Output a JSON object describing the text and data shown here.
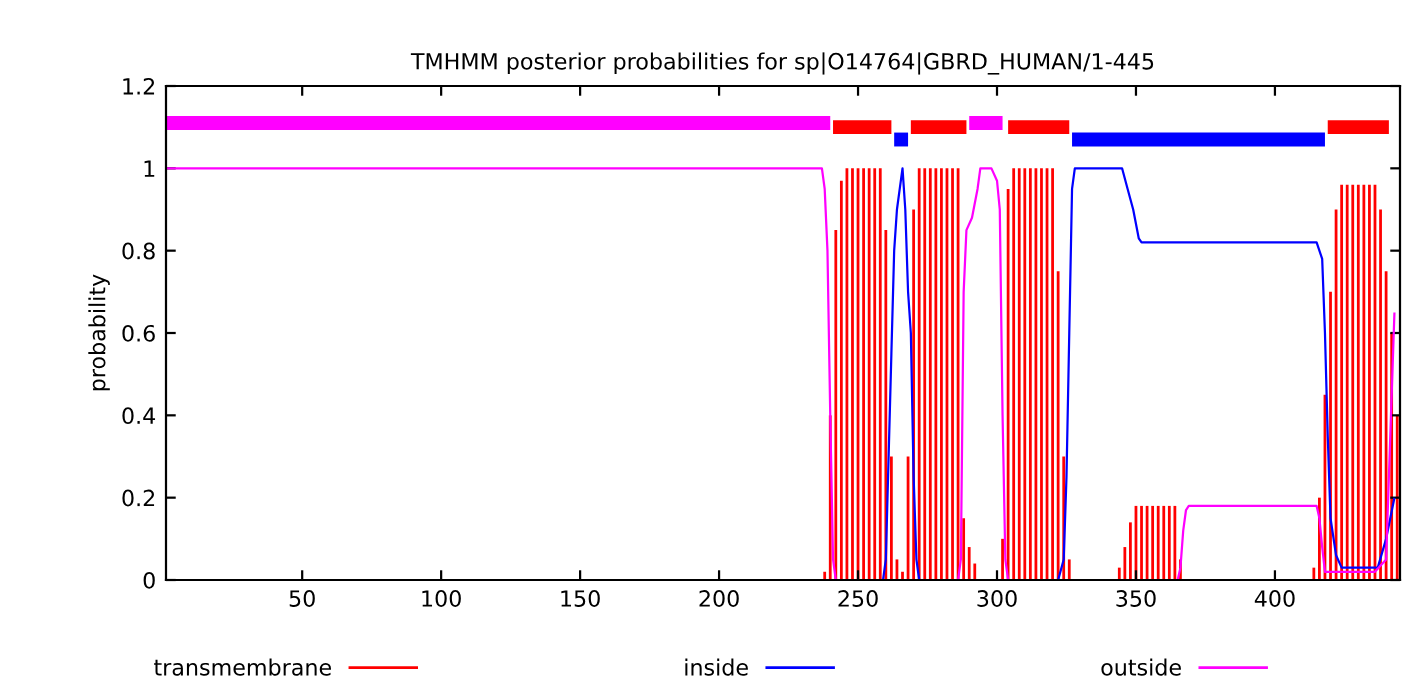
{
  "chart_data": {
    "type": "line",
    "title": "TMHMM posterior probabilities for sp|O14764|GBRD_HUMAN/1-445",
    "ylabel": "probability",
    "xlim": [
      1,
      445
    ],
    "ylim": [
      0,
      1.2
    ],
    "xticks": [
      50,
      100,
      150,
      200,
      250,
      300,
      350,
      400
    ],
    "yticks": [
      0,
      0.2,
      0.4,
      0.6,
      0.8,
      1,
      1.2
    ],
    "grid": false,
    "legend": "bottom",
    "series": [
      {
        "name": "transmembrane",
        "type": "bar",
        "color": "#ff0000",
        "x": [
          238,
          240,
          242,
          244,
          246,
          248,
          250,
          252,
          254,
          256,
          258,
          260,
          262,
          264,
          266,
          268,
          270,
          272,
          274,
          276,
          278,
          280,
          282,
          284,
          286,
          288,
          290,
          292,
          300,
          302,
          304,
          306,
          308,
          310,
          312,
          314,
          316,
          318,
          320,
          322,
          324,
          326,
          344,
          346,
          348,
          350,
          352,
          354,
          356,
          358,
          360,
          362,
          364,
          366,
          368,
          414,
          416,
          418,
          420,
          422,
          424,
          426,
          428,
          430,
          432,
          434,
          436,
          438,
          440,
          442,
          444
        ],
        "values": [
          0.02,
          0.4,
          0.85,
          0.97,
          1,
          1,
          1,
          1,
          1,
          1,
          1,
          0.85,
          0.3,
          0.05,
          0.02,
          0.3,
          0.9,
          1,
          1,
          1,
          1,
          1,
          1,
          1,
          1,
          0.15,
          0.08,
          0.04,
          null,
          0.1,
          0.95,
          1,
          1,
          1,
          1,
          1,
          1,
          1,
          1,
          0.75,
          0.3,
          0.05,
          0.03,
          0.08,
          0.14,
          0.18,
          0.18,
          0.18,
          0.18,
          0.18,
          0.18,
          0.18,
          0.18,
          0.05,
          null,
          0.03,
          0.2,
          0.45,
          0.7,
          0.9,
          0.96,
          0.96,
          0.96,
          0.96,
          0.96,
          0.96,
          0.96,
          0.9,
          0.75,
          0.6,
          0.4
        ]
      },
      {
        "name": "inside",
        "color": "#0000ff",
        "x": [
          1,
          259,
          260,
          261,
          262,
          263,
          264,
          265,
          266,
          267,
          268,
          269,
          270,
          271,
          272,
          322,
          324,
          325,
          326,
          327,
          328,
          345,
          347,
          349,
          351,
          352,
          415,
          417,
          418,
          419,
          420,
          422,
          424,
          437,
          440,
          443
        ],
        "values": [
          0,
          0,
          0.05,
          0.3,
          0.55,
          0.8,
          0.9,
          0.95,
          1,
          0.9,
          0.7,
          0.6,
          0.25,
          0.05,
          0,
          0,
          0.05,
          0.25,
          0.6,
          0.95,
          1,
          1,
          0.95,
          0.9,
          0.83,
          0.82,
          0.82,
          0.78,
          0.6,
          0.35,
          0.15,
          0.06,
          0.03,
          0.03,
          0.1,
          0.2
        ]
      },
      {
        "name": "outside",
        "color": "#ff00ff",
        "x": [
          1,
          237,
          238,
          239,
          240,
          241,
          242,
          286,
          287,
          288,
          289,
          291,
          293,
          294,
          298,
          300,
          301,
          302,
          303,
          304,
          365,
          366,
          367,
          368,
          369,
          415,
          416,
          417,
          418,
          436,
          440,
          443
        ],
        "values": [
          1,
          1,
          0.95,
          0.8,
          0.4,
          0.05,
          0,
          0,
          0.05,
          0.7,
          0.85,
          0.88,
          0.95,
          1,
          1,
          0.97,
          0.9,
          0.4,
          0.05,
          0,
          0,
          0.03,
          0.12,
          0.17,
          0.18,
          0.18,
          0.15,
          0.08,
          0.02,
          0.02,
          0.05,
          0.65
        ]
      },
      {
        "color": "#ff0000",
        "x": [
          241,
          262
        ],
        "values": [
          1.1,
          1.1
        ]
      },
      {
        "color": "#ff0000",
        "x": [
          269,
          289
        ],
        "values": [
          1.1,
          1.1
        ]
      },
      {
        "color": "#ff0000",
        "x": [
          304,
          326
        ],
        "values": [
          1.1,
          1.1
        ]
      },
      {
        "color": "#ff0000",
        "x": [
          419,
          441
        ],
        "values": [
          1.1,
          1.1
        ]
      },
      {
        "color": "#0000ff",
        "x": [
          263,
          268
        ],
        "values": [
          1.07,
          1.07
        ]
      },
      {
        "color": "#0000ff",
        "x": [
          327,
          418
        ],
        "values": [
          1.07,
          1.07
        ]
      },
      {
        "color": "#ff00ff",
        "x": [
          1,
          240
        ],
        "values": [
          1.11,
          1.11
        ]
      },
      {
        "color": "#ff00ff",
        "x": [
          290,
          302
        ],
        "values": [
          1.11,
          1.11
        ]
      }
    ]
  }
}
